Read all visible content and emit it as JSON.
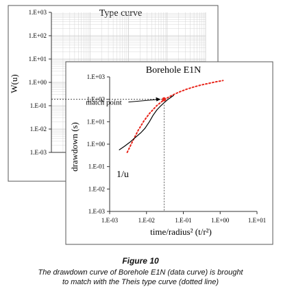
{
  "colors": {
    "frame": "#555555",
    "grid": "#cccccc",
    "data_curve": "#000000",
    "type_curve": "#e8241a",
    "match_point": "#e8241a",
    "crosshair": "#333333"
  },
  "chart_data": [
    {
      "id": "type-curve",
      "type": "scatter",
      "title": "Type curve",
      "ylabel": "W(u)",
      "xlabel": "1/u",
      "yscale": "log",
      "ylim": [
        0.001,
        1000
      ],
      "yticks": [
        "1.E-03",
        "1.E-02",
        "1.E-01",
        "1.E+00",
        "1.E+01",
        "1.E+02",
        "1.E+03"
      ],
      "grid": true,
      "series": [
        {
          "style": "dotted",
          "color": "#e8241a",
          "log10_x_offset": [
            0.0,
            0.15,
            0.3,
            0.45,
            0.6,
            0.8,
            1.0,
            1.2,
            1.4,
            1.6,
            1.8,
            2.0,
            2.2,
            2.4,
            2.6
          ],
          "y": [
            0.001,
            0.0031,
            0.009,
            0.022,
            0.046,
            0.1,
            0.18,
            0.27,
            0.38,
            0.5,
            0.63,
            0.77,
            0.9,
            1.05,
            1.2
          ]
        }
      ],
      "annotations": [
        {
          "text": "match point",
          "x_offset": 1.0,
          "y": 1.0
        }
      ]
    },
    {
      "id": "borehole-e1n",
      "type": "line",
      "title": "Borehole E1N",
      "ylabel": "drawdown (s)",
      "xlabel": "time/radius² (t/r²)",
      "xscale": "log",
      "yscale": "log",
      "xlim": [
        0.001,
        10
      ],
      "ylim": [
        0.001,
        1000
      ],
      "xticks": [
        "1.E-03",
        "1.E-02",
        "1.E-01",
        "1.E+00",
        "1.E+01"
      ],
      "yticks": [
        "1.E-03",
        "1.E-02",
        "1.E-01",
        "1.E+00",
        "1.E+01",
        "1.E+02",
        "1.E+03"
      ],
      "grid": false,
      "series": [
        {
          "style": "solid",
          "color": "#000000",
          "x": [
            0.0018,
            0.0025,
            0.0035,
            0.005,
            0.007,
            0.009,
            0.012,
            0.015,
            0.019,
            0.024,
            0.03,
            0.037,
            0.045,
            0.055
          ],
          "y": [
            0.55,
            0.8,
            1.2,
            2.0,
            3.2,
            5.0,
            10.0,
            19.0,
            33.0,
            50.0,
            70.0,
            95.0,
            120.0,
            150.0
          ]
        }
      ],
      "match_point": {
        "x": 0.03,
        "y": 100
      }
    }
  ],
  "figure": {
    "label": "Figure 10",
    "caption_line1": "The drawdown curve of Borehole E1N (data curve) is brought",
    "caption_line2": "to match with the Theis type curve (dotted line)"
  }
}
